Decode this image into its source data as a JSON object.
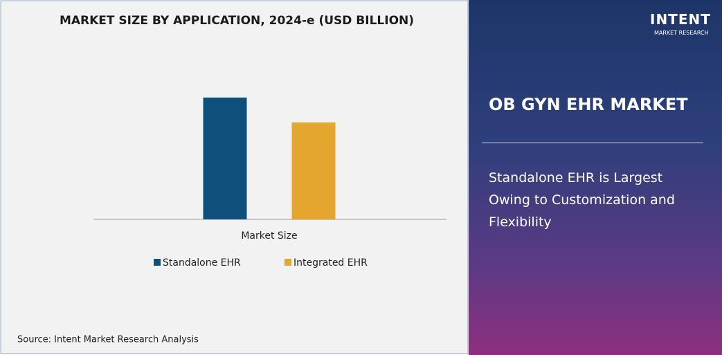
{
  "chart_data": {
    "type": "bar",
    "title": "MARKET SIZE BY APPLICATION, 2024-e (USD BILLION)",
    "categories": [
      "Market Size"
    ],
    "series": [
      {
        "name": "Standalone EHR",
        "color": "#0e4f7c",
        "values": [
          0.88
        ]
      },
      {
        "name": "Integrated EHR",
        "color": "#e5a630",
        "values": [
          0.7
        ]
      }
    ],
    "ylim": [
      0,
      1
    ],
    "legend": "bottom"
  },
  "source": "Source: Intent Market Research Analysis",
  "panel": {
    "title": "OB GYN EHR MARKET",
    "headline": "Standalone EHR is Largest Owing to Customization and Flexibility"
  },
  "logo": {
    "name": "INTENT",
    "tagline": "MARKET RESEARCH"
  }
}
